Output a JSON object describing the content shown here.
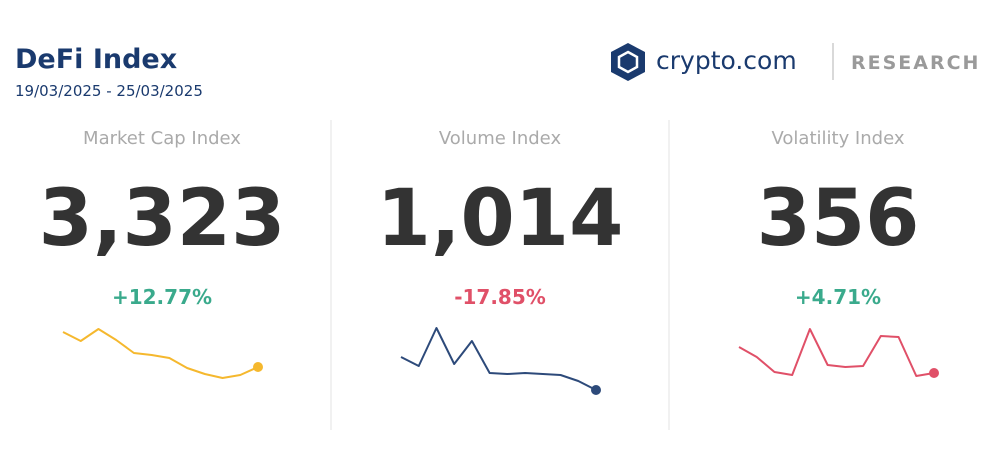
{
  "header": {
    "title": "DeFi Index",
    "date_range": "19/03/2025 - 25/03/2025"
  },
  "brand": {
    "name": "crypto.com",
    "section": "RESEARCH"
  },
  "cards": [
    {
      "label": "Market Cap Index",
      "value": "3,323",
      "change": "+12.77%",
      "direction": "up",
      "color": "#f5b82e",
      "sparkline": [
        68,
        59,
        71,
        60,
        47,
        45,
        42,
        32,
        26,
        22,
        25,
        33
      ]
    },
    {
      "label": "Volume Index",
      "value": "1,014",
      "change": "-17.85%",
      "direction": "down",
      "color": "#2d4a7a",
      "sparkline": [
        43,
        34,
        72,
        36,
        59,
        27,
        26,
        27,
        26,
        25,
        19,
        10
      ]
    },
    {
      "label": "Volatility Index",
      "value": "356",
      "change": "+4.71%",
      "direction": "up",
      "color": "#e05068",
      "sparkline": [
        53,
        43,
        28,
        25,
        71,
        35,
        33,
        34,
        64,
        63,
        24,
        27
      ]
    }
  ]
}
